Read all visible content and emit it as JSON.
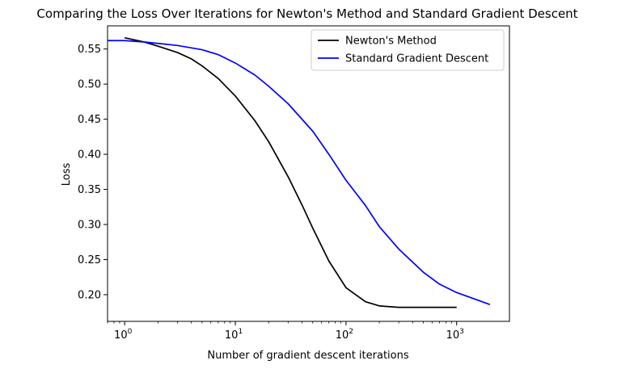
{
  "chart_data": {
    "type": "line",
    "title": "Comparing the Loss Over Iterations for Newton's Method and Standard Gradient Descent",
    "xlabel": "Number of gradient descent iterations",
    "ylabel": "Loss",
    "xscale": "log",
    "xlim": [
      0.7,
      3000
    ],
    "ylim": [
      0.162,
      0.583
    ],
    "xticks": [
      {
        "value": 1,
        "label": "10",
        "exp": "0"
      },
      {
        "value": 10,
        "label": "10",
        "exp": "1"
      },
      {
        "value": 100,
        "label": "10",
        "exp": "2"
      },
      {
        "value": 1000,
        "label": "10",
        "exp": "3"
      }
    ],
    "yticks": [
      0.2,
      0.25,
      0.3,
      0.35,
      0.4,
      0.45,
      0.5,
      0.55
    ],
    "ytick_labels": [
      "0.20",
      "0.25",
      "0.30",
      "0.35",
      "0.40",
      "0.45",
      "0.50",
      "0.55"
    ],
    "grid": false,
    "legend_position": "top-right",
    "series": [
      {
        "name": "Newton's Method",
        "color": "#000000",
        "x": [
          1,
          1.5,
          2,
          3,
          4,
          5,
          7,
          10,
          15,
          20,
          30,
          40,
          50,
          70,
          100,
          150,
          200,
          300,
          500,
          1000
        ],
        "y": [
          0.566,
          0.56,
          0.554,
          0.545,
          0.536,
          0.526,
          0.508,
          0.483,
          0.448,
          0.418,
          0.368,
          0.328,
          0.295,
          0.248,
          0.21,
          0.19,
          0.184,
          0.182,
          0.182,
          0.182
        ]
      },
      {
        "name": "Standard Gradient Descent",
        "color": "#0000ff",
        "x": [
          0.7,
          1,
          1.5,
          2,
          3,
          5,
          7,
          10,
          15,
          20,
          30,
          50,
          70,
          100,
          150,
          200,
          300,
          500,
          700,
          1000,
          2000
        ],
        "y": [
          0.562,
          0.562,
          0.56,
          0.558,
          0.555,
          0.549,
          0.542,
          0.53,
          0.513,
          0.497,
          0.472,
          0.433,
          0.4,
          0.363,
          0.327,
          0.297,
          0.265,
          0.232,
          0.215,
          0.203,
          0.186
        ]
      }
    ]
  }
}
